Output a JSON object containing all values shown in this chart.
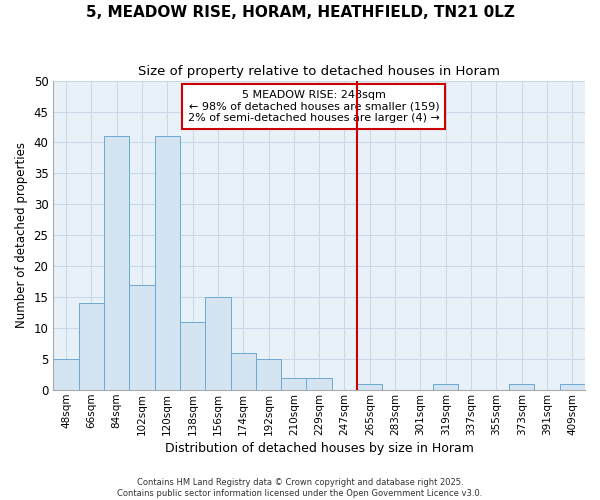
{
  "title_line1": "5, MEADOW RISE, HORAM, HEATHFIELD, TN21 0LZ",
  "title_line2": "Size of property relative to detached houses in Horam",
  "xlabel": "Distribution of detached houses by size in Horam",
  "ylabel": "Number of detached properties",
  "bar_labels": [
    "48sqm",
    "66sqm",
    "84sqm",
    "102sqm",
    "120sqm",
    "138sqm",
    "156sqm",
    "174sqm",
    "192sqm",
    "210sqm",
    "229sqm",
    "247sqm",
    "265sqm",
    "283sqm",
    "301sqm",
    "319sqm",
    "337sqm",
    "355sqm",
    "373sqm",
    "391sqm",
    "409sqm"
  ],
  "bar_values": [
    5,
    14,
    41,
    17,
    41,
    11,
    15,
    6,
    5,
    2,
    2,
    0,
    1,
    0,
    0,
    1,
    0,
    0,
    1,
    0,
    1
  ],
  "bar_color": "#d4e4f0",
  "bar_edge_color": "#6aaad4",
  "vline_x_index": 11.5,
  "vline_color": "#cc0000",
  "ylim": [
    0,
    50
  ],
  "yticks": [
    0,
    5,
    10,
    15,
    20,
    25,
    30,
    35,
    40,
    45,
    50
  ],
  "annotation_title": "5 MEADOW RISE: 248sqm",
  "annotation_line1": "← 98% of detached houses are smaller (159)",
  "annotation_line2": "2% of semi-detached houses are larger (4) →",
  "grid_color": "#c8d8e8",
  "background_color": "#e8f0f8",
  "footer_line1": "Contains HM Land Registry data © Crown copyright and database right 2025.",
  "footer_line2": "Contains public sector information licensed under the Open Government Licence v3.0."
}
